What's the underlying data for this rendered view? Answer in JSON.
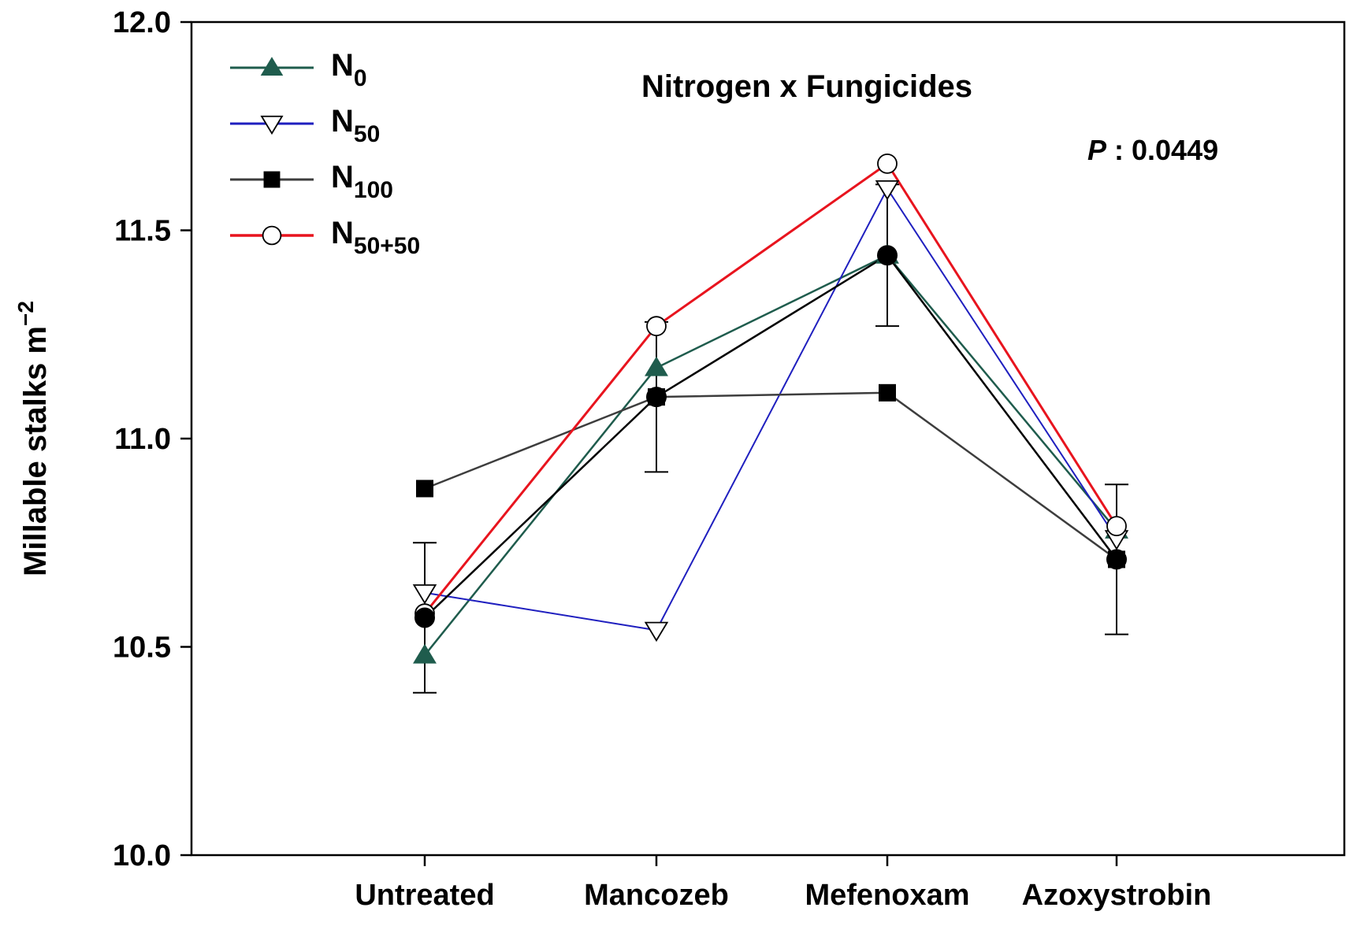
{
  "chart_data": {
    "type": "line",
    "title": "Nitrogen x Fungicides",
    "ylabel": "Millable stalks m",
    "ylabel_sup": "−2",
    "xlabel": "",
    "annotation": {
      "p_symbol": "P",
      "p_value": " : 0.0449"
    },
    "categories": [
      "Untreated",
      "Mancozeb",
      "Mefenoxam",
      "Azoxystrobin"
    ],
    "ylim": [
      10.0,
      12.0
    ],
    "yticks": [
      "10.0",
      "10.5",
      "11.0",
      "11.5",
      "12.0"
    ],
    "ytick_values": [
      10.0,
      10.5,
      11.0,
      11.5,
      12.0
    ],
    "grid": false,
    "legend_position": "top-left",
    "series": [
      {
        "key": "n0",
        "base": "N",
        "sub": "0",
        "color": "#1f5c4d",
        "marker": "triangle-filled",
        "values": [
          10.48,
          11.17,
          11.44,
          10.78
        ]
      },
      {
        "key": "n50",
        "base": "N",
        "sub": "50",
        "color": "#1f1fbf",
        "marker": "triangle-down-open",
        "values": [
          10.63,
          10.54,
          11.6,
          10.76
        ]
      },
      {
        "key": "n100",
        "base": "N",
        "sub": "100",
        "color": "#3d3d3d",
        "marker": "square-filled",
        "values": [
          10.88,
          11.1,
          11.11,
          10.71
        ]
      },
      {
        "key": "n50plus50",
        "base": "N",
        "sub": "50+50",
        "color": "#e8141e",
        "marker": "circle-open",
        "values": [
          10.58,
          11.27,
          11.66,
          10.79
        ]
      },
      {
        "key": "mean",
        "base": "",
        "sub": "",
        "color": "#000000",
        "marker": "circle-filled",
        "values": [
          10.57,
          11.1,
          11.44,
          10.71
        ],
        "error": [
          0.18,
          0.18,
          0.17,
          0.18
        ]
      }
    ]
  }
}
